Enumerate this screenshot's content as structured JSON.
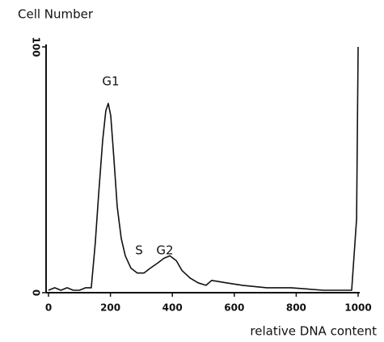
{
  "chart_data": {
    "type": "line",
    "y_label": "Cell Number",
    "x_label": "relative DNA content",
    "annotations": [
      "G1",
      "S",
      "G2"
    ],
    "x": [
      0,
      20,
      40,
      60,
      80,
      100,
      120,
      138,
      151,
      162,
      175,
      185,
      193,
      201,
      211,
      222,
      235,
      248,
      266,
      287,
      308,
      329,
      352,
      373,
      392,
      413,
      431,
      457,
      483,
      509,
      527,
      574,
      627,
      705,
      783,
      888,
      979,
      995,
      1000
    ],
    "values": [
      1,
      2,
      1,
      2,
      1,
      1,
      2,
      2,
      20,
      40,
      62,
      74,
      77,
      72,
      55,
      35,
      22,
      15,
      10,
      8,
      8,
      10,
      12,
      14,
      15,
      13,
      9,
      6,
      4,
      3,
      5,
      4,
      3,
      2,
      2,
      1,
      1,
      30,
      100
    ],
    "color": "#111111",
    "xlim": [
      0,
      1000
    ],
    "ylim": [
      0,
      100
    ],
    "xticks": [
      0,
      200,
      400,
      600,
      800,
      1000
    ],
    "yticks": [
      0,
      100
    ],
    "grid": false
  }
}
